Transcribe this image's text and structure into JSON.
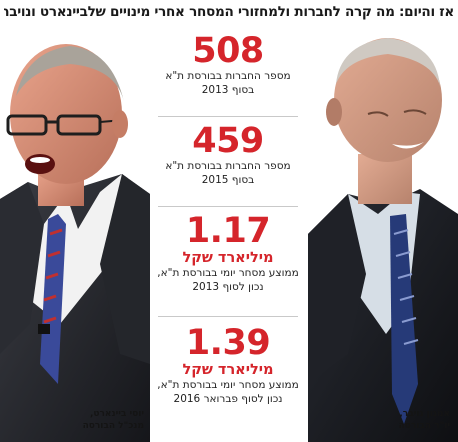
{
  "headline": "אז והיום: מה קרה לחברות ולמחזורי המסחר אחרי מינויים שלביינארט ונויבר?",
  "stats": [
    {
      "value": "508",
      "unit": "",
      "desc_line1": "מספר החברות בבורסת ת\"א",
      "desc_line2": "בסוף 2013"
    },
    {
      "value": "459",
      "unit": "",
      "desc_line1": "מספר החברות בבורסת ת\"א",
      "desc_line2": "בסוף 2015"
    },
    {
      "value": "1.17",
      "unit": "מיליארד שקל",
      "desc_line1": "ממוצע מסחר יומי בבורסת ת\"א,",
      "desc_line2": "נכון לסוף 2013"
    },
    {
      "value": "1.39",
      "unit": "מיליארד שקל",
      "desc_line1": "ממוצע מסחר יומי בבורסת ת\"א,",
      "desc_line2": "נכון לסוף פברואר 2016"
    }
  ],
  "left_person": {
    "name": "יוסי ביינארט,",
    "title": "מנכ\"ל הבורסה"
  },
  "right_person": {
    "name": "אמנון נויבר,",
    "title": "יו\"ר הבורסה"
  },
  "colors": {
    "accent": "#d5252b",
    "text": "#1a1a1a"
  }
}
